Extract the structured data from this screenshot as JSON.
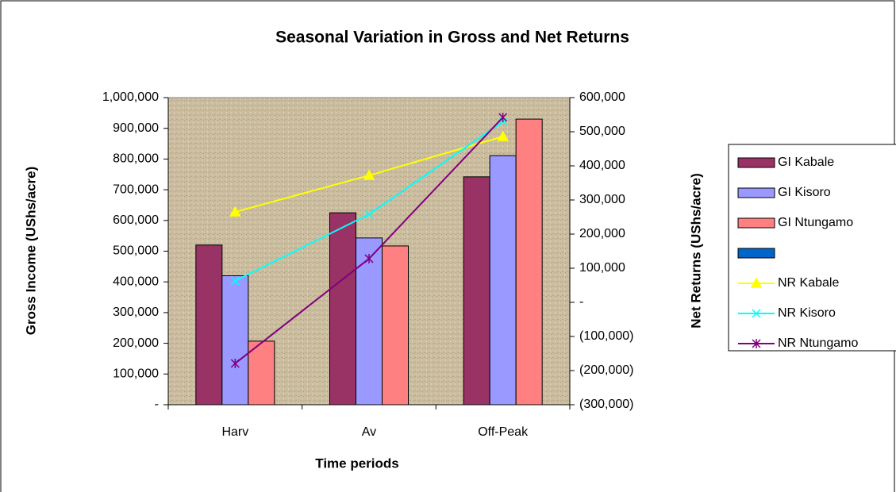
{
  "chart_data": {
    "type": "bar",
    "title": "Seasonal Variation in Gross and Net Returns",
    "x_label": "Time periods",
    "y_label": "Gross Income (UShs/acre)",
    "y2_label": "Net Returns (UShs/acre)",
    "categories": [
      "Harv",
      "Av",
      "Off-Peak"
    ],
    "series": [
      {
        "name": "GI Kabale",
        "type": "bar",
        "color": "#993366",
        "values": [
          520000,
          625000,
          742000
        ]
      },
      {
        "name": "GI Kisoro",
        "type": "bar",
        "color": "#9999ff",
        "values": [
          420000,
          543000,
          811000
        ]
      },
      {
        "name": "GI Ntungamo",
        "type": "bar",
        "color": "#ff8080",
        "values": [
          207000,
          517000,
          930000
        ]
      },
      {
        "type": "bar",
        "color": "#0066cc",
        "values": [
          null,
          null,
          null
        ]
      },
      {
        "name": "NR Kabale",
        "type": "line",
        "axis": "y2",
        "color": "#ffff00",
        "marker": "triangle",
        "values": [
          265000,
          372000,
          486000
        ]
      },
      {
        "name": "NR Kisoro",
        "type": "line",
        "axis": "y2",
        "color": "#00ffff",
        "marker": "x",
        "values": [
          63000,
          258000,
          530000
        ]
      },
      {
        "name": "NR Ntungamo",
        "type": "line",
        "axis": "y2",
        "color": "#800080",
        "marker": "star",
        "values": [
          -179000,
          128000,
          542000
        ]
      }
    ],
    "ylim": [
      0,
      1000000
    ],
    "yticks": [
      {
        "value": 0,
        "label": "-"
      },
      {
        "value": 100000,
        "label": "100,000"
      },
      {
        "value": 200000,
        "label": "200,000"
      },
      {
        "value": 300000,
        "label": "300,000"
      },
      {
        "value": 400000,
        "label": "400,000"
      },
      {
        "value": 500000,
        "label": "500,000"
      },
      {
        "value": 600000,
        "label": "600,000"
      },
      {
        "value": 700000,
        "label": "700,000"
      },
      {
        "value": 800000,
        "label": "800,000"
      },
      {
        "value": 900000,
        "label": "900,000"
      },
      {
        "value": 1000000,
        "label": "1,000,000"
      }
    ],
    "y2lim": [
      -300000,
      600000
    ],
    "y2ticks": [
      {
        "value": -300000,
        "label": "(300,000)"
      },
      {
        "value": -200000,
        "label": "(200,000)"
      },
      {
        "value": -100000,
        "label": "(100,000)"
      },
      {
        "value": 0,
        "label": "-"
      },
      {
        "value": 100000,
        "label": "100,000"
      },
      {
        "value": 200000,
        "label": "200,000"
      },
      {
        "value": 300000,
        "label": "300,000"
      },
      {
        "value": 400000,
        "label": "400,000"
      },
      {
        "value": 500000,
        "label": "500,000"
      },
      {
        "value": 600000,
        "label": "600,000"
      }
    ],
    "legend": "right",
    "grid": false
  }
}
